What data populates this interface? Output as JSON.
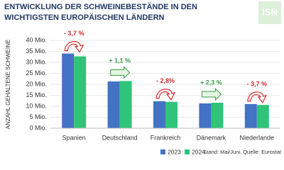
{
  "chart_data": {
    "type": "bar",
    "title": [
      "ENTWICKLUNG DER SCHWEINEBESTÄNDE IN DEN",
      "WICHTIGSTEN EUROPÄISCHEN LÄNDERN"
    ],
    "logo": "ISN",
    "y_label": "ANZAHL GEHALTENE SCHWEINE",
    "source": "Stand: Mai/Juni, Quelle: Eurostat",
    "categories": [
      "Spanien",
      "Deutschland",
      "Frankreich",
      "Dänemark",
      "Niederlande"
    ],
    "series": [
      {
        "name": "2023",
        "color": "#4472c4",
        "values": [
          34.0,
          21.3,
          12.3,
          11.3,
          11.0
        ]
      },
      {
        "name": "2024",
        "color": "#2fc47a",
        "values": [
          32.7,
          21.5,
          12.0,
          11.6,
          10.6
        ]
      }
    ],
    "annotations": [
      {
        "text": "- 3,7 %",
        "color": "#d62b2b"
      },
      {
        "text": "+ 1,1 %",
        "color": "#3a9d4a"
      },
      {
        "text": "- 2,8%",
        "color": "#d62b2b"
      },
      {
        "text": "+ 2,3 %",
        "color": "#3a9d4a"
      },
      {
        "text": "- 3,7 %",
        "color": "#d62b2b"
      }
    ],
    "ylim": [
      0,
      40
    ],
    "yticks": [
      {
        "value": 0,
        "label": "0 Mio."
      },
      {
        "value": 5,
        "label": "5 Mio."
      },
      {
        "value": 10,
        "label": "10 Mio."
      },
      {
        "value": 15,
        "label": "15 Mio."
      },
      {
        "value": 20,
        "label": "20 Mio."
      },
      {
        "value": 25,
        "label": "25 Mio."
      },
      {
        "value": 30,
        "label": "30 Mio."
      },
      {
        "value": 35,
        "label": "35 Mio."
      },
      {
        "value": 40,
        "label": "40 Mio."
      }
    ],
    "grid": true
  }
}
